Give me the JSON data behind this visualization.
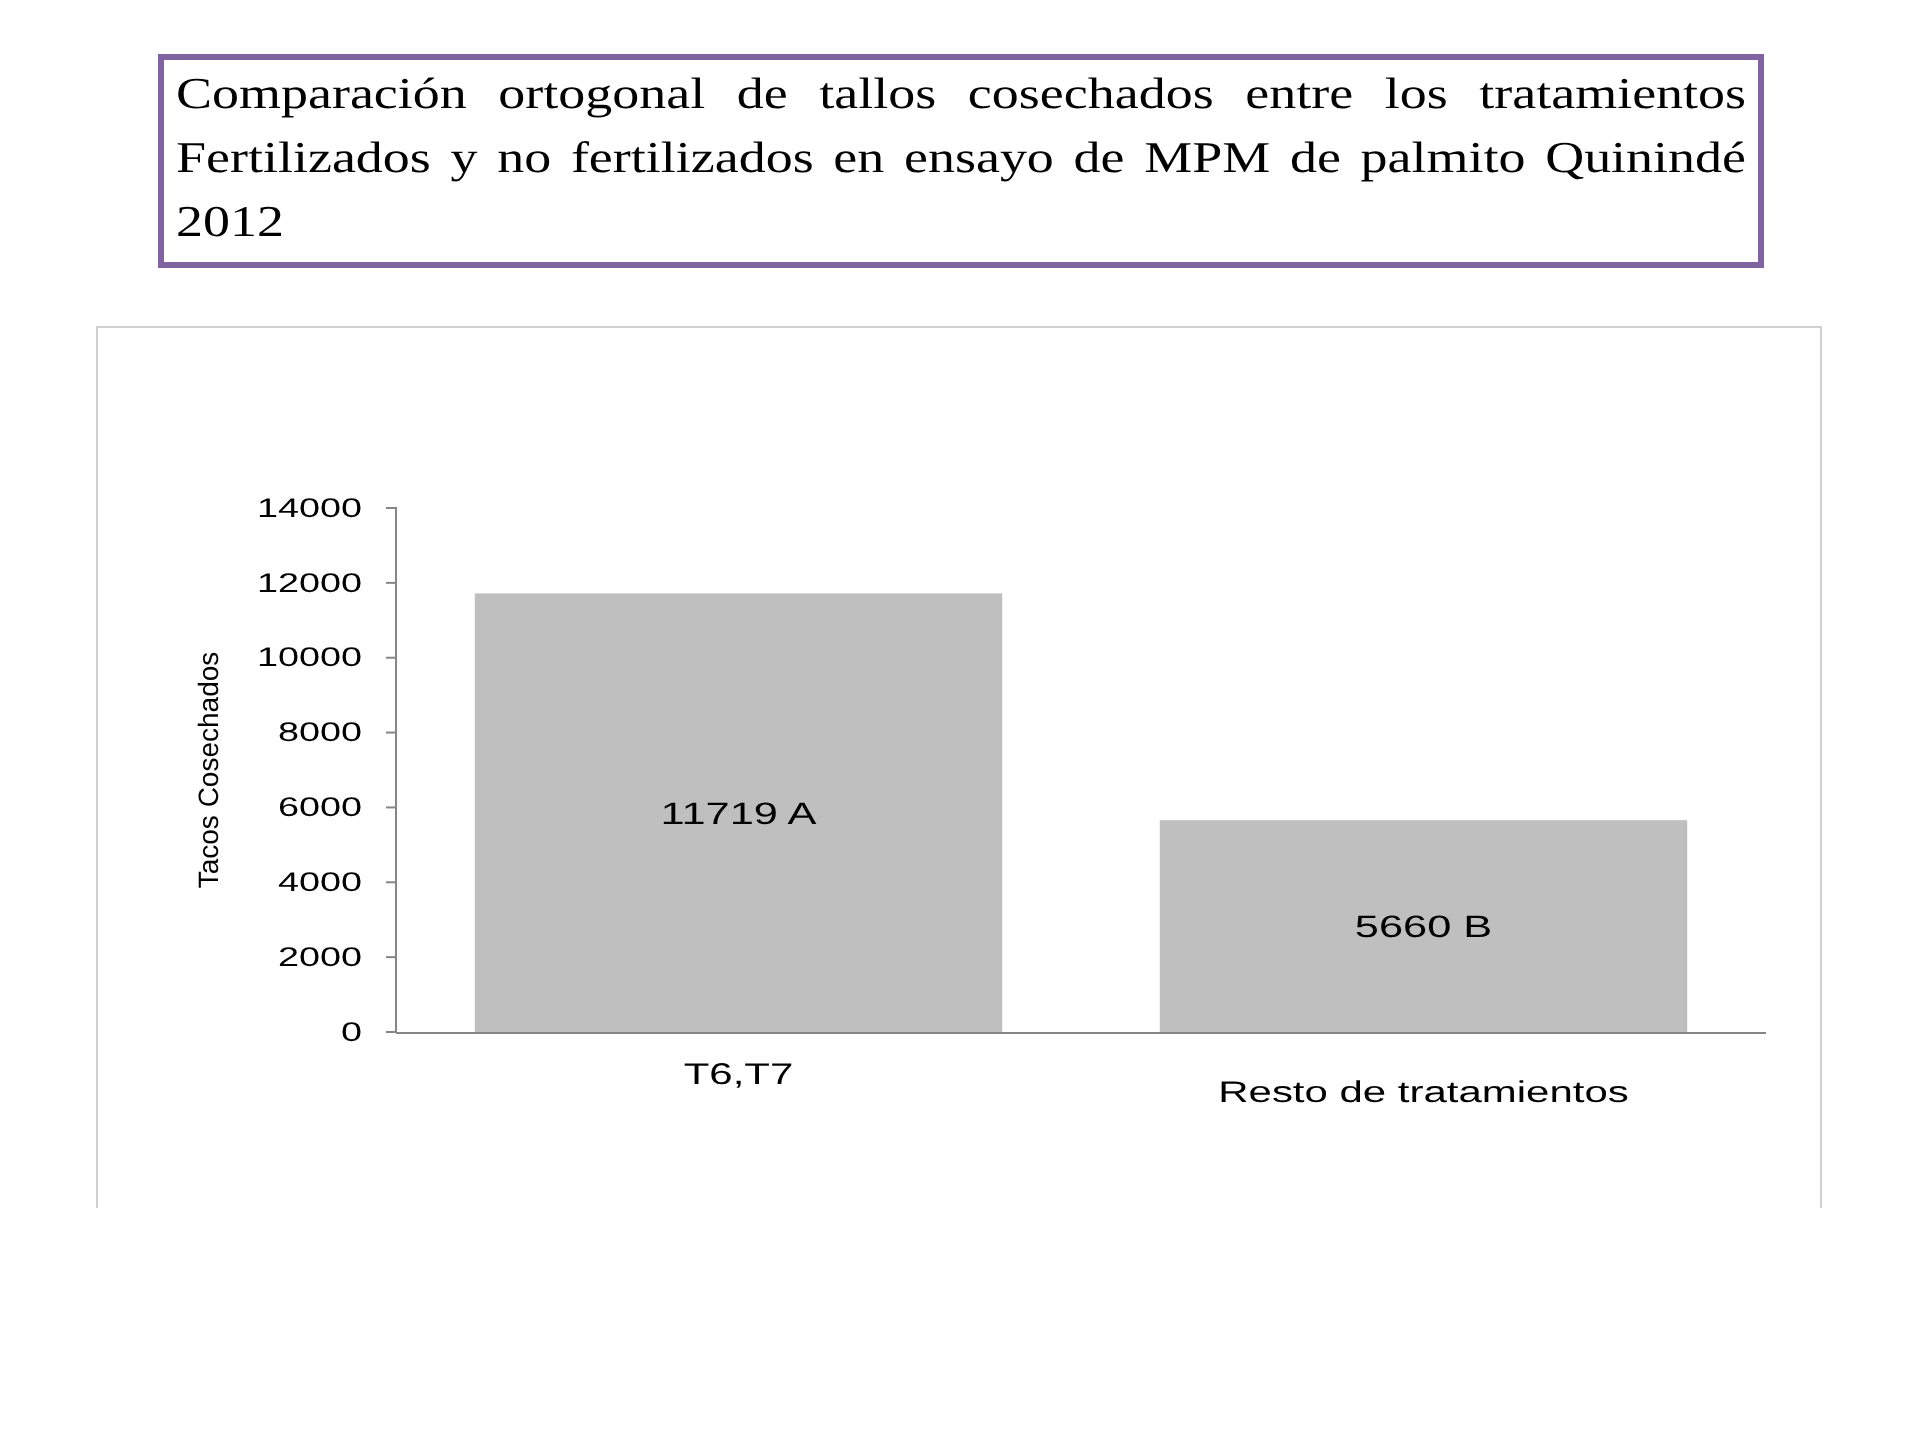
{
  "chart_data": {
    "type": "bar",
    "title": "Comparación ortogonal de tallos cosechados entre los tratamientos Fertilizados y no fertilizados en ensayo de MPM de palmito Quinindé 2012",
    "ylabel": "Tacos Cosechados",
    "categories": [
      "T6,T7",
      "Resto de tratamientos"
    ],
    "values": [
      11719,
      5660
    ],
    "value_labels": [
      "11719 A",
      "5660 B"
    ],
    "color": "#bfbfbf",
    "ylim": [
      0,
      14000
    ],
    "yticks": [
      0,
      2000,
      4000,
      6000,
      8000,
      10000,
      12000,
      14000
    ]
  }
}
